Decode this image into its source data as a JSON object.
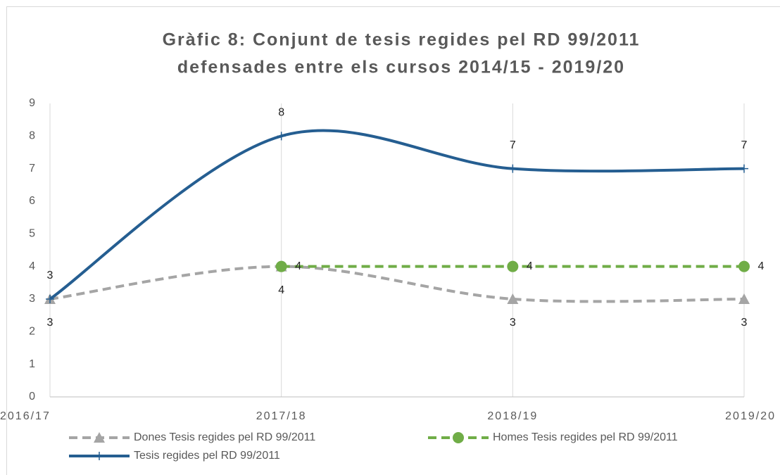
{
  "chart_data": {
    "type": "line",
    "title": [
      "Gràfic 8: Conjunt de tesis regides pel RD 99/2011",
      "defensades entre els cursos 2014/15 - 2019/20"
    ],
    "categories": [
      "2016/17",
      "2017/18",
      "2018/19",
      "2019/20"
    ],
    "series": [
      {
        "name": "Dones Tesis regides pel RD 99/2011",
        "color": "#a5a5a5",
        "dash": true,
        "marker": "triangle",
        "label_position": "below",
        "values": [
          3,
          4,
          3,
          3
        ]
      },
      {
        "name": "Homes Tesis regides pel RD 99/2011",
        "color": "#70ad47",
        "dash": true,
        "marker": "circle",
        "label_position": "right",
        "values": [
          null,
          4,
          4,
          4
        ]
      },
      {
        "name": "Tesis regides pel RD 99/2011",
        "color": "#255e91",
        "dash": false,
        "marker": "plus",
        "label_position": "above",
        "values": [
          3,
          8,
          7,
          7
        ]
      }
    ],
    "ylim": [
      0,
      9
    ],
    "yticks": [
      0,
      1,
      2,
      3,
      4,
      5,
      6,
      7,
      8,
      9
    ],
    "grid": "vertical",
    "smooth": true,
    "legend": "bottom"
  }
}
